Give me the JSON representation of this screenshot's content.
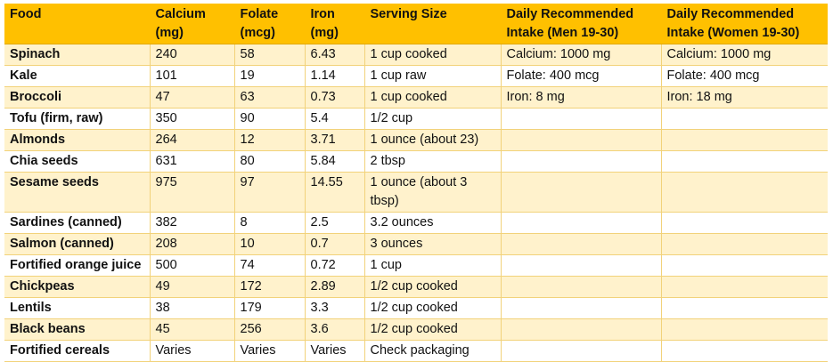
{
  "table": {
    "headers": [
      "Food",
      "Calcium (mg)",
      "Folate (mcg)",
      "Iron (mg)",
      "Serving Size",
      "Daily Recommended Intake (Men 19-30)",
      "Daily Recommended Intake (Women 19-30)"
    ],
    "rows": [
      [
        "Spinach",
        "240",
        "58",
        "6.43",
        "1 cup cooked",
        "Calcium: 1000 mg",
        "Calcium: 1000 mg"
      ],
      [
        "Kale",
        "101",
        "19",
        "1.14",
        "1 cup raw",
        "Folate: 400 mcg",
        "Folate: 400 mcg"
      ],
      [
        "Broccoli",
        "47",
        "63",
        "0.73",
        "1 cup cooked",
        "Iron: 8 mg",
        "Iron: 18 mg"
      ],
      [
        "Tofu (firm, raw)",
        "350",
        "90",
        "5.4",
        "1/2 cup",
        "",
        ""
      ],
      [
        "Almonds",
        "264",
        "12",
        "3.71",
        "1 ounce (about 23)",
        "",
        ""
      ],
      [
        "Chia seeds",
        "631",
        "80",
        "5.84",
        "2 tbsp",
        "",
        ""
      ],
      [
        "Sesame seeds",
        "975",
        "97",
        "14.55",
        "1 ounce (about 3 tbsp)",
        "",
        ""
      ],
      [
        "Sardines (canned)",
        "382",
        "8",
        "2.5",
        "3.2 ounces",
        "",
        ""
      ],
      [
        "Salmon (canned)",
        "208",
        "10",
        "0.7",
        "3 ounces",
        "",
        ""
      ],
      [
        "Fortified orange juice",
        "500",
        "74",
        "0.72",
        "1 cup",
        "",
        ""
      ],
      [
        "Chickpeas",
        "49",
        "172",
        "2.89",
        "1/2 cup cooked",
        "",
        ""
      ],
      [
        "Lentils",
        "38",
        "179",
        "3.3",
        "1/2 cup cooked",
        "",
        ""
      ],
      [
        "Black beans",
        "45",
        "256",
        "3.6",
        "1/2 cup cooked",
        "",
        ""
      ],
      [
        "Fortified cereals",
        "Varies",
        "Varies",
        "Varies",
        "Check packaging",
        "",
        ""
      ]
    ]
  }
}
